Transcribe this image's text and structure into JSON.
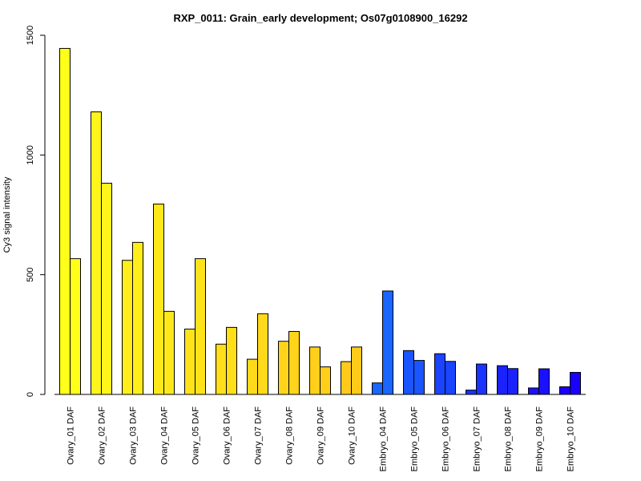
{
  "chart_data": {
    "type": "bar",
    "title": "RXP_0011: Grain_early development; Os07g0108900_16292",
    "xlabel": "",
    "ylabel": "Cy3 signal intensity",
    "ylim": [
      0,
      1500
    ],
    "yticks": [
      0,
      500,
      1000,
      1500
    ],
    "grid": false,
    "legend": "none",
    "categories": [
      "Ovary_01 DAF",
      "Ovary_02 DAF",
      "Ovary_03 DAF",
      "Ovary_04 DAF",
      "Ovary_05 DAF",
      "Ovary_06 DAF",
      "Ovary_07 DAF",
      "Ovary_08 DAF",
      "Ovary_09 DAF",
      "Ovary_10 DAF",
      "Embryo_04 DAF",
      "Embryo_05 DAF",
      "Embryo_06 DAF",
      "Embryo_07 DAF",
      "Embryo_08 DAF",
      "Embryo_09 DAF",
      "Embryo_10 DAF"
    ],
    "series": [
      {
        "values": [
          1445,
          1180,
          560,
          795,
          273,
          210,
          147,
          222,
          198,
          137,
          48,
          183,
          170,
          18,
          120,
          27,
          32
        ]
      },
      {
        "values": [
          567,
          882,
          635,
          347,
          567,
          280,
          337,
          263,
          115,
          198,
          432,
          142,
          138,
          127,
          108,
          107,
          92
        ]
      }
    ],
    "colors": [
      "#FFFF1A",
      "#FFF51A",
      "#FFEE1A",
      "#FFE81A",
      "#FFE31A",
      "#FFDE1A",
      "#FFD91A",
      "#FFD41A",
      "#FFCF1A",
      "#FFCA1A",
      "#1A66FF",
      "#1A55FF",
      "#1A44FF",
      "#1A33FF",
      "#1A22FF",
      "#1A11FF",
      "#1A00FF"
    ]
  }
}
